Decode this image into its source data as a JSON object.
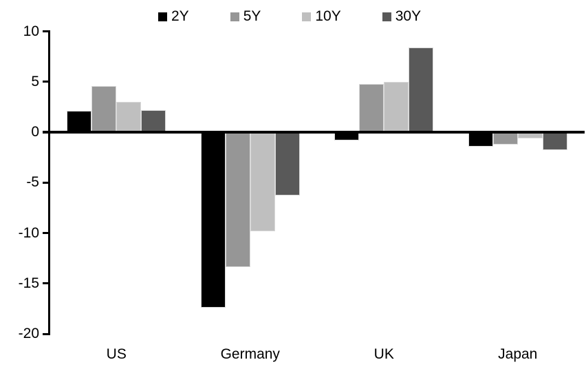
{
  "chart_data": {
    "type": "bar",
    "title": "",
    "categories": [
      "US",
      "Germany",
      "UK",
      "Japan"
    ],
    "series": [
      {
        "name": "2Y",
        "color": "#000000",
        "values": [
          2.1,
          -17.4,
          -0.8,
          -1.4
        ]
      },
      {
        "name": "5Y",
        "color": "#969696",
        "values": [
          4.6,
          -13.4,
          4.8,
          -1.2
        ]
      },
      {
        "name": "10Y",
        "color": "#bfbfbf",
        "values": [
          3.0,
          -9.8,
          5.0,
          -0.6
        ]
      },
      {
        "name": "30Y",
        "color": "#595959",
        "values": [
          2.2,
          -6.3,
          8.4,
          -1.8
        ]
      }
    ],
    "ylim": [
      -20,
      10
    ],
    "yticks": [
      10,
      5,
      0,
      -5,
      -10,
      -15,
      -20
    ],
    "xlabel": "",
    "ylabel": "",
    "grid": false,
    "legend_position": "top",
    "axis_color": "#000000",
    "background_color": "#ffffff"
  }
}
